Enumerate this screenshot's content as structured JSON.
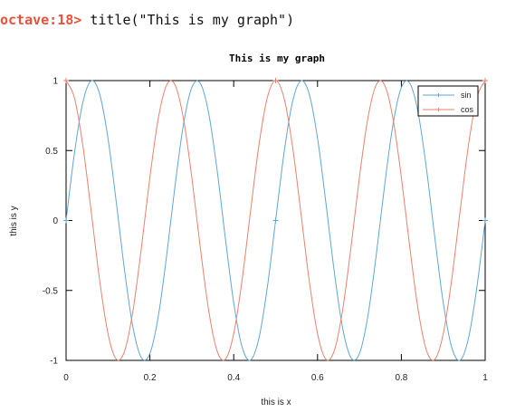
{
  "console": {
    "prompt": "octave:18>",
    "command": "title(\"This is my graph\")"
  },
  "chart_data": {
    "type": "line",
    "title": "This is my graph",
    "xlabel": "this is x",
    "ylabel": "this is y",
    "xlim": [
      0,
      1
    ],
    "ylim": [
      -1,
      1
    ],
    "x_ticks": [
      "0",
      "0.2",
      "0.4",
      "0.6",
      "0.8",
      "1"
    ],
    "y_ticks": [
      "-1",
      "-0.5",
      "0",
      "0.5",
      "1"
    ],
    "grid": false,
    "legend_position": "top-right",
    "x": [
      0,
      0.02,
      0.04,
      0.06,
      0.08,
      0.1,
      0.12,
      0.14,
      0.16,
      0.18,
      0.2,
      0.22,
      0.24,
      0.26,
      0.28,
      0.3,
      0.32,
      0.34,
      0.36,
      0.38,
      0.4,
      0.42,
      0.44,
      0.46,
      0.48,
      0.5,
      0.52,
      0.54,
      0.56,
      0.58,
      0.6,
      0.62,
      0.64,
      0.66,
      0.68,
      0.7,
      0.72,
      0.74,
      0.76,
      0.78,
      0.8,
      0.82,
      0.84,
      0.86,
      0.88,
      0.9,
      0.92,
      0.94,
      0.96,
      0.98,
      1
    ],
    "series": [
      {
        "name": "sin",
        "color": "#5fa6d3",
        "values": [
          0,
          0.482,
          0.844,
          0.998,
          0.905,
          0.588,
          0.125,
          -0.368,
          -0.771,
          -0.982,
          -0.951,
          -0.685,
          -0.249,
          0.249,
          0.685,
          0.951,
          0.982,
          0.771,
          0.368,
          -0.125,
          -0.588,
          -0.905,
          -0.998,
          -0.844,
          -0.482,
          0,
          0.482,
          0.844,
          0.998,
          0.905,
          0.588,
          0.125,
          -0.368,
          -0.771,
          -0.982,
          -0.951,
          -0.685,
          -0.249,
          0.249,
          0.685,
          0.951,
          0.982,
          0.771,
          0.368,
          -0.125,
          -0.588,
          -0.905,
          -0.998,
          -0.844,
          -0.482,
          0
        ]
      },
      {
        "name": "cos",
        "color": "#e8826c",
        "values": [
          1,
          0.876,
          0.536,
          0.063,
          -0.426,
          -0.809,
          -0.992,
          -0.93,
          -0.637,
          -0.187,
          0.309,
          0.729,
          0.969,
          0.969,
          0.729,
          0.309,
          -0.187,
          -0.637,
          -0.93,
          -0.992,
          -0.809,
          -0.426,
          0.063,
          0.536,
          0.876,
          1,
          0.876,
          0.536,
          0.063,
          -0.426,
          -0.809,
          -0.992,
          -0.93,
          -0.637,
          -0.187,
          0.309,
          0.729,
          0.969,
          0.969,
          0.729,
          0.309,
          -0.187,
          -0.637,
          -0.93,
          -0.992,
          -0.809,
          -0.426,
          0.063,
          0.536,
          0.876,
          1
        ]
      }
    ]
  }
}
